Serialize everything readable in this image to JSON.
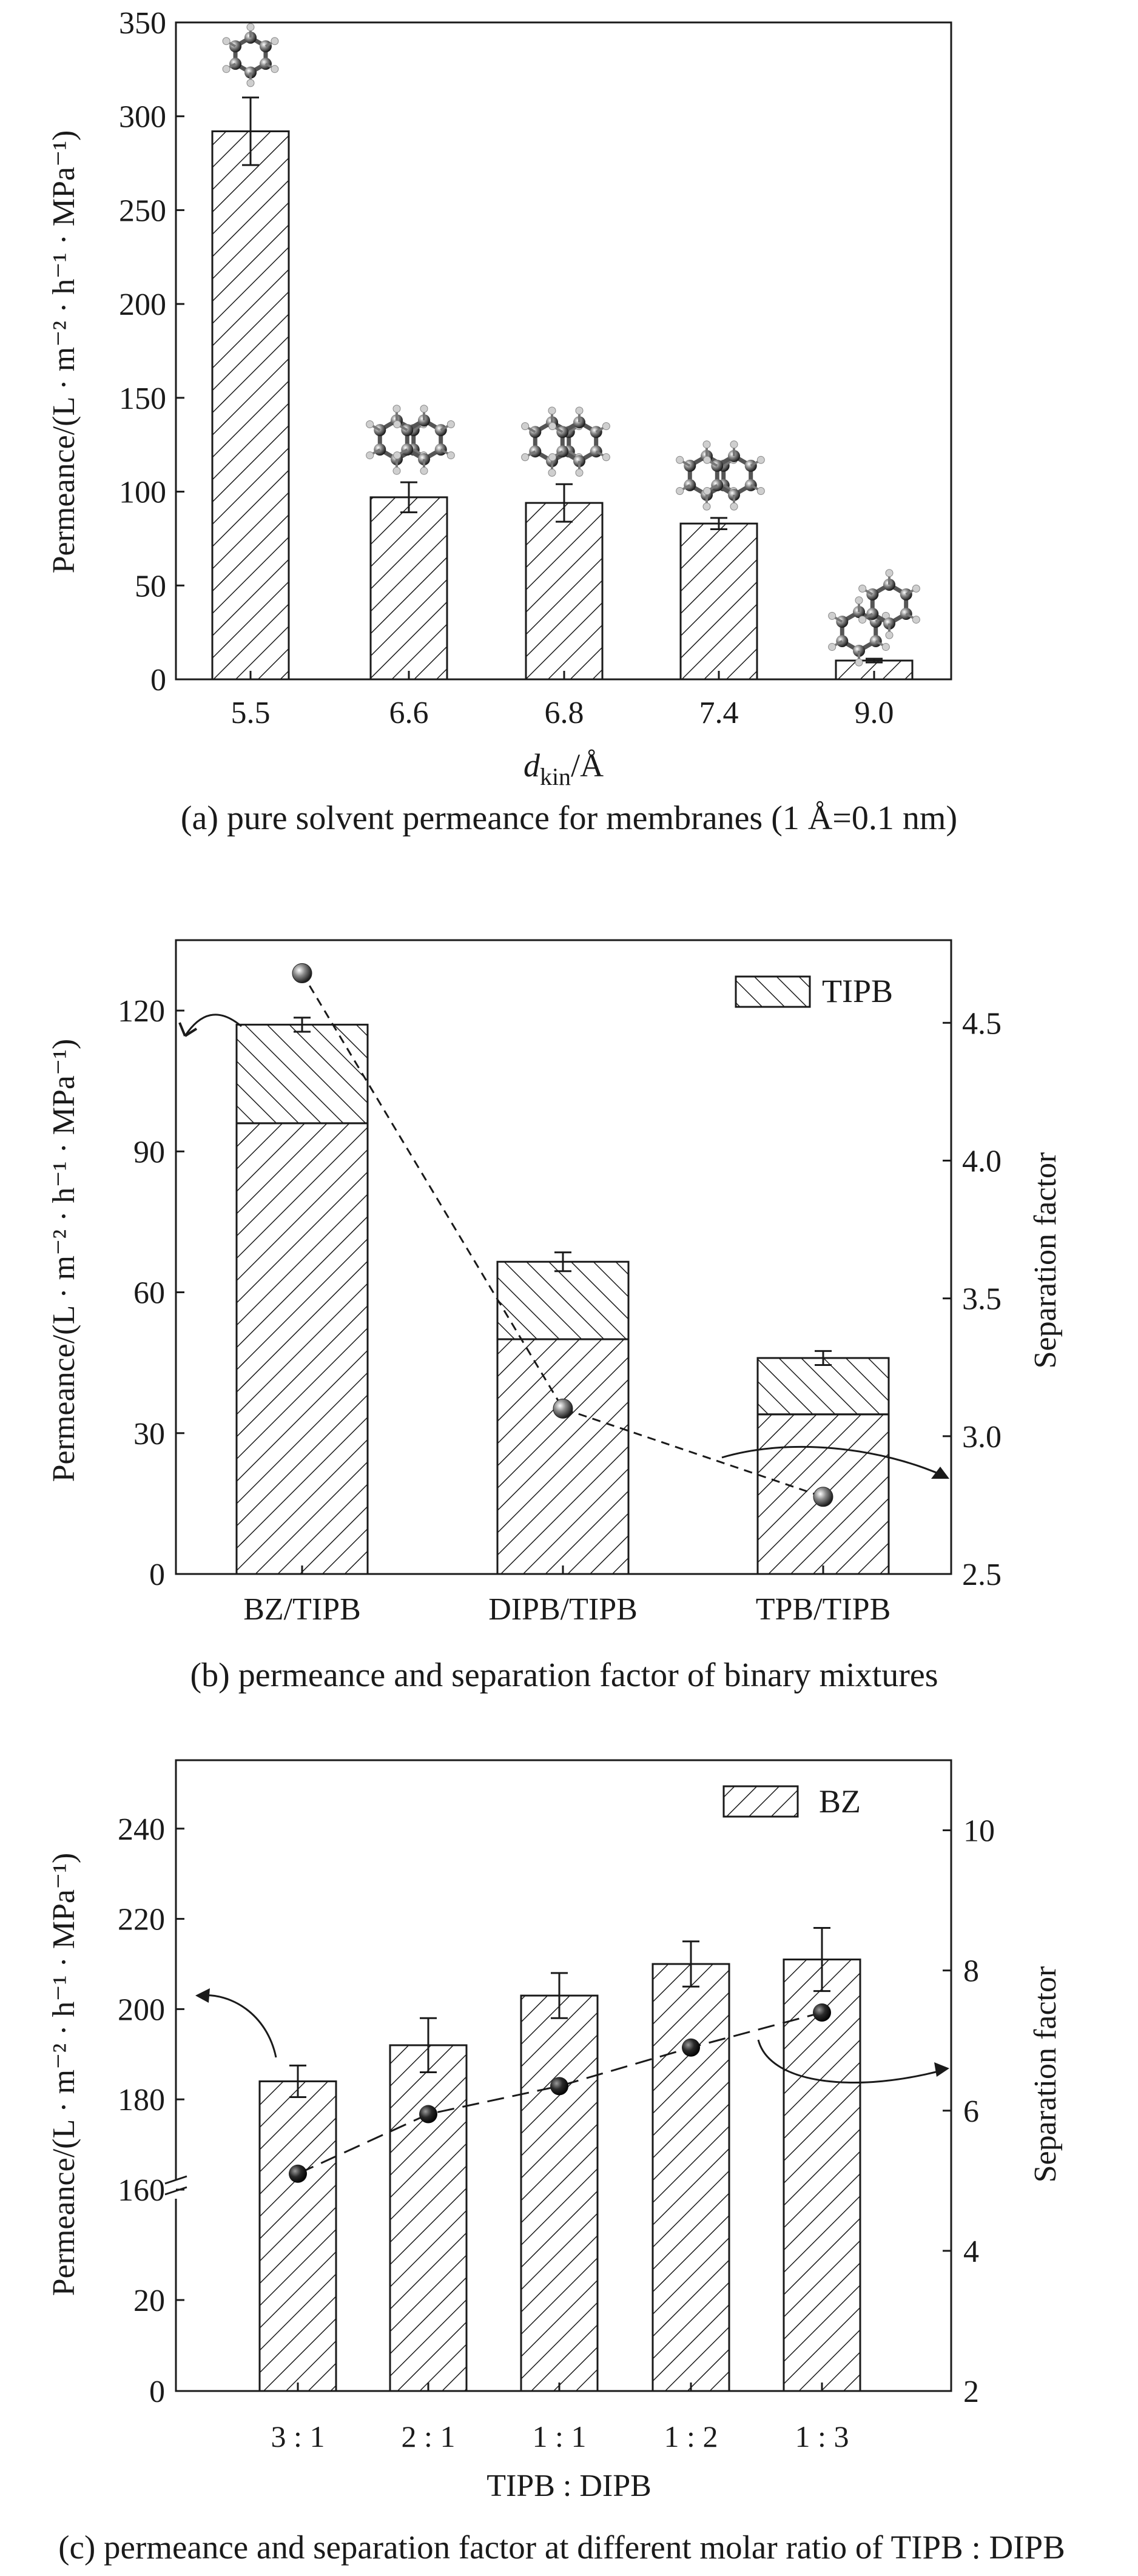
{
  "chart_data": [
    {
      "id": "a",
      "type": "bar",
      "categories": [
        "5.5",
        "6.6",
        "6.8",
        "7.4",
        "9.0"
      ],
      "values": [
        292,
        97,
        94,
        83,
        10
      ],
      "errors": [
        18,
        8,
        10,
        3,
        1
      ],
      "ylabel": "Permeance/(L · m⁻² · h⁻¹ · MPa⁻¹)",
      "xlabel_main": "d",
      "xlabel_sub": "kin",
      "xlabel_unit": "/Å",
      "ylim": [
        0,
        350
      ],
      "yticks": [
        0,
        50,
        100,
        150,
        200,
        250,
        300,
        350
      ],
      "caption": "(a) pure solvent permeance for membranes (1 Å=0.1 nm)"
    },
    {
      "id": "b",
      "type": "bar",
      "stacked": true,
      "categories": [
        "BZ/TIPB",
        "DIPB/TIPB",
        "TPB/TIPB"
      ],
      "series": [
        {
          "name": "",
          "values": [
            96,
            50,
            34
          ]
        },
        {
          "name": "TIPB",
          "values": [
            21,
            16.5,
            12
          ]
        }
      ],
      "totals": [
        117,
        66.5,
        46
      ],
      "errors": [
        1.5,
        2,
        1.5
      ],
      "separation_factor": [
        4.68,
        3.1,
        2.78
      ],
      "ylabel": "Permeance/(L · m⁻² · h⁻¹ · MPa⁻¹)",
      "y2label": "Separation factor",
      "ylim": [
        0,
        135
      ],
      "yticks": [
        0,
        30,
        60,
        90,
        120
      ],
      "y2lim": [
        2.5,
        4.8
      ],
      "y2ticks": [
        "2.5",
        "3.0",
        "3.5",
        "4.0",
        "4.5"
      ],
      "legend": "TIPB",
      "caption": "(b) permeance and separation factor of binary mixtures"
    },
    {
      "id": "c",
      "type": "bar",
      "categories": [
        "3 : 1",
        "2 : 1",
        "1 : 1",
        "1 : 2",
        "1 : 3"
      ],
      "values": [
        184,
        192,
        203,
        210,
        211
      ],
      "errors": [
        3.5,
        6,
        5,
        5,
        7
      ],
      "separation_factor": [
        5.1,
        5.95,
        6.35,
        6.9,
        7.4
      ],
      "ylabel": "Permeance/(L · m⁻² · h⁻¹ · MPa⁻¹)",
      "y2label": "Separation factor",
      "yticks_lower": [
        0,
        20
      ],
      "yticks_upper": [
        160,
        180,
        200,
        220,
        240
      ],
      "y2lim": [
        2,
        11
      ],
      "y2ticks": [
        2,
        4,
        6,
        8,
        10
      ],
      "xlabel": "TIPB : DIPB",
      "legend": "BZ",
      "caption": "(c) permeance and separation factor at different molar ratio of TIPB : DIPB"
    }
  ]
}
